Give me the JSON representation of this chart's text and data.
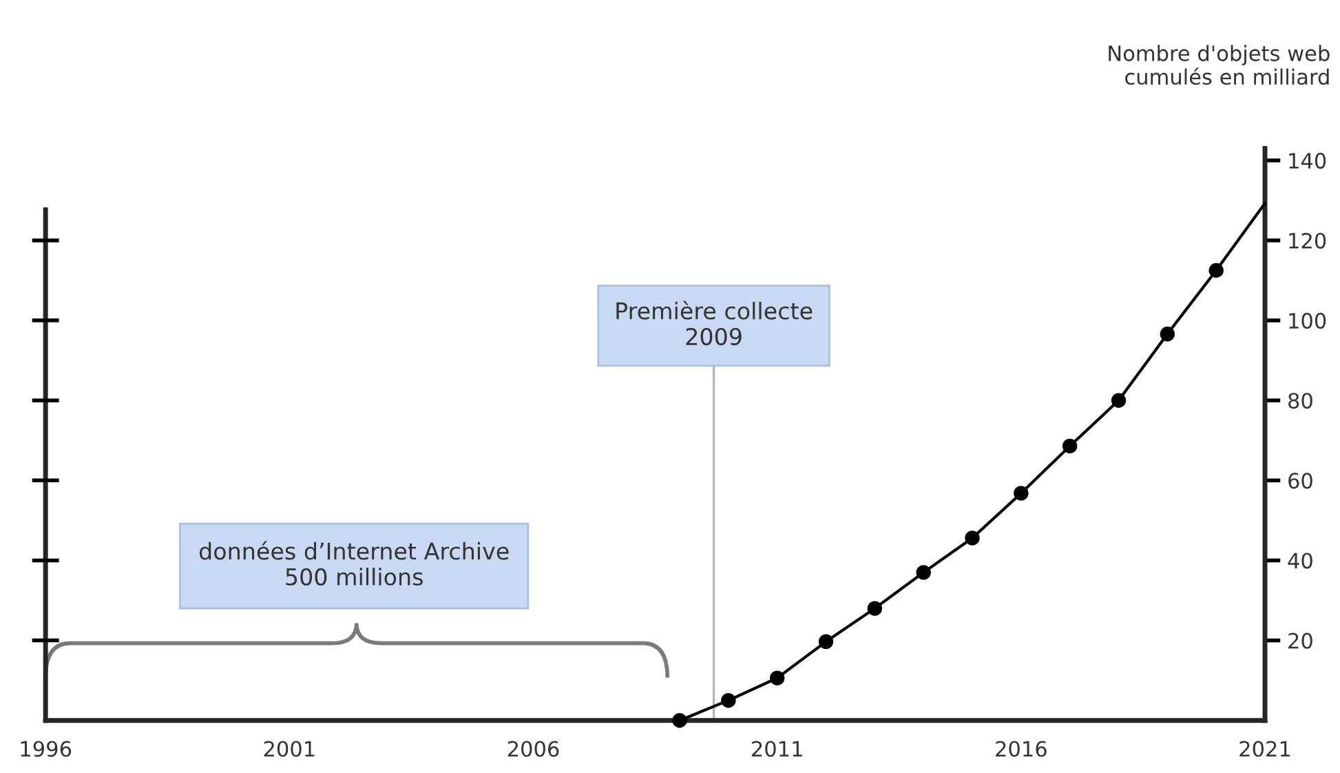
{
  "chart_data": {
    "type": "line",
    "x": [
      2009,
      2010,
      2011,
      2012,
      2013,
      2014,
      2015,
      2016,
      2017,
      2018,
      2019,
      2020,
      2021
    ],
    "series": [
      {
        "color": "#000000",
        "marker": "none",
        "values": [
          0,
          5,
          10.6,
          19.7,
          28,
          37,
          45.6,
          56.8,
          68.6,
          80,
          96.6,
          112.5,
          129.3
        ]
      },
      {
        "type": "scatter",
        "color": "#000000",
        "marker": "circle",
        "x": [
          2009,
          2010,
          2011,
          2012,
          2013,
          2014,
          2015,
          2016,
          2017,
          2018,
          2019,
          2020
        ],
        "values": [
          0,
          5,
          10.6,
          19.7,
          28,
          37,
          45.6,
          56.8,
          68.6,
          80,
          96.6,
          112.5
        ]
      }
    ],
    "ylabel": "Nombre d'objets web\ncumulés en milliard",
    "xlim": [
      1996,
      2021
    ],
    "xticks": [
      1996,
      2001,
      2006,
      2011,
      2016,
      2021
    ],
    "ylim": [
      0,
      143
    ],
    "yticks": [
      20,
      40,
      60,
      80,
      100,
      120,
      140
    ],
    "ref_lines": [
      {
        "axis": "x",
        "value": 2009.7,
        "label": "Première collecte\n2009",
        "color": "#b4b4b4"
      }
    ],
    "annotations": [
      "données d’Internet Archive\n500 millions"
    ],
    "grid": false
  }
}
